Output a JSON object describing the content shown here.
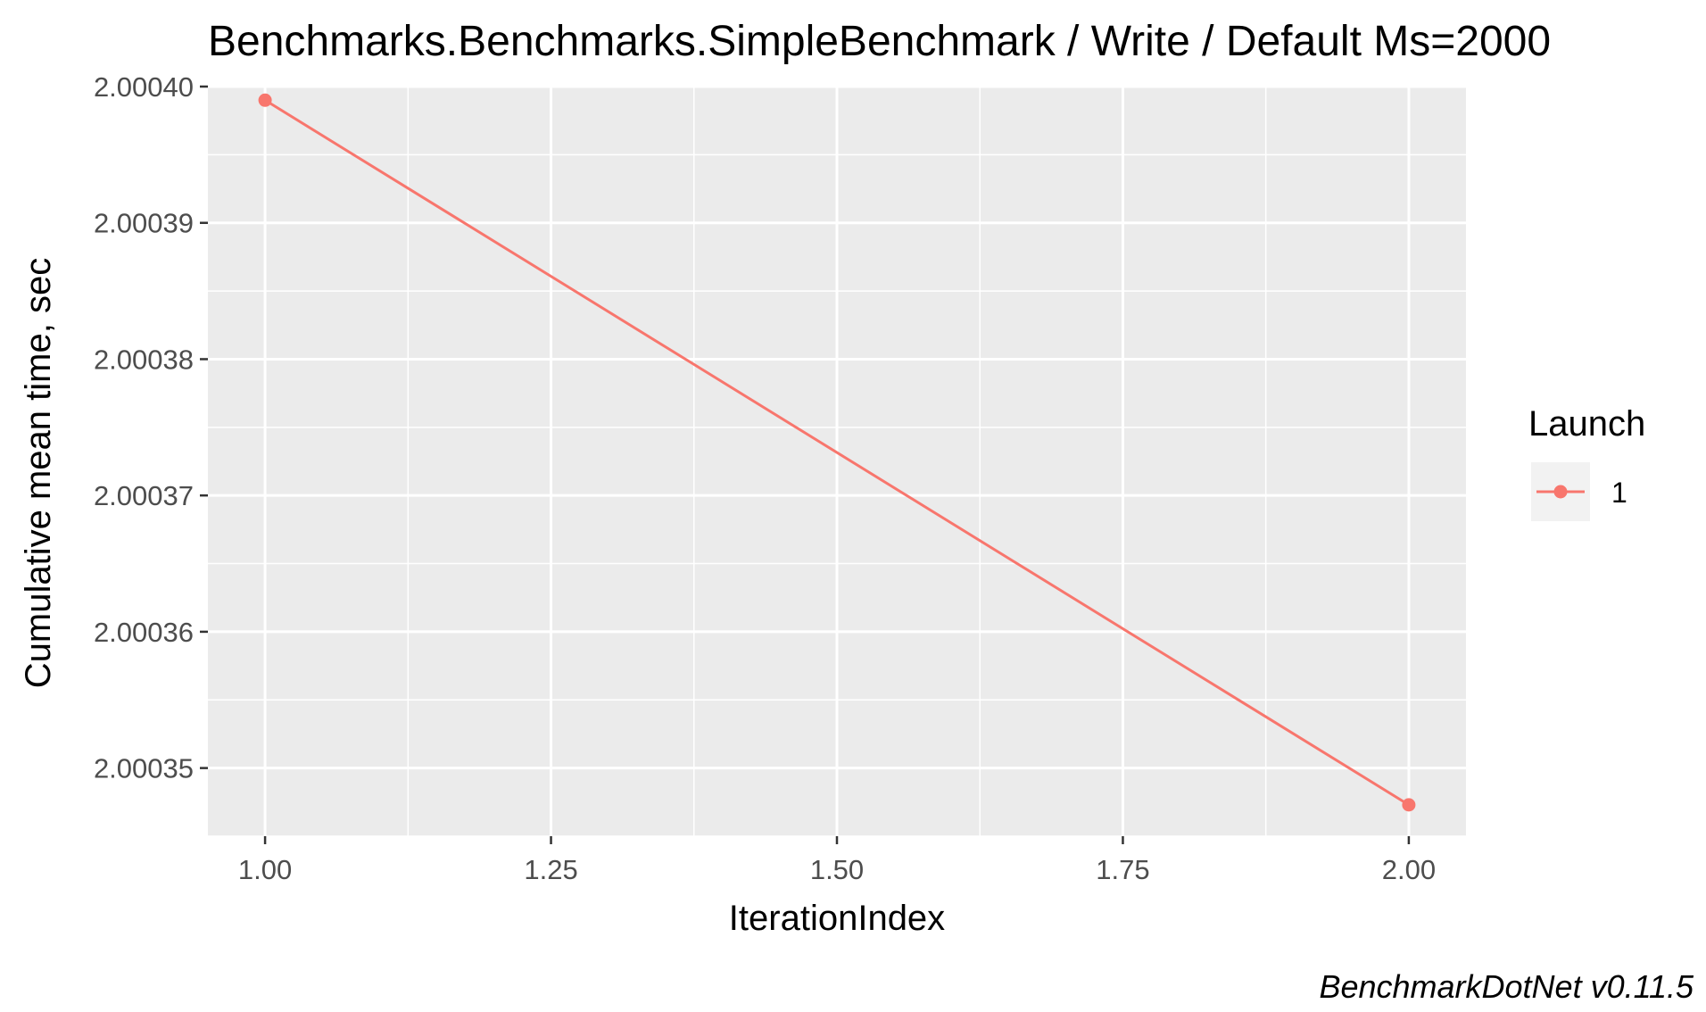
{
  "chart_data": {
    "type": "line",
    "title": "Benchmarks.Benchmarks.SimpleBenchmark / Write / Default Ms=2000",
    "xlabel": "IterationIndex",
    "ylabel": "Cumulative mean time, sec",
    "caption": "BenchmarkDotNet v0.11.5",
    "xlim": [
      0.95,
      2.05
    ],
    "ylim": [
      2.000345,
      2.0004
    ],
    "x_ticks": [
      1.0,
      1.25,
      1.5,
      1.75,
      2.0
    ],
    "x_tick_labels": [
      "1.00",
      "1.25",
      "1.50",
      "1.75",
      "2.00"
    ],
    "y_ticks": [
      2.00035,
      2.00036,
      2.00037,
      2.00038,
      2.00039,
      2.0004
    ],
    "y_tick_labels": [
      "2.00035",
      "2.00036",
      "2.00037",
      "2.00038",
      "2.00039",
      "2.00040"
    ],
    "grid": true,
    "legend": {
      "title": "Launch",
      "position": "right"
    },
    "series": [
      {
        "name": "1",
        "color": "#F8766D",
        "x": [
          1.0,
          2.0
        ],
        "y": [
          2.000399,
          2.0003473
        ]
      }
    ]
  }
}
